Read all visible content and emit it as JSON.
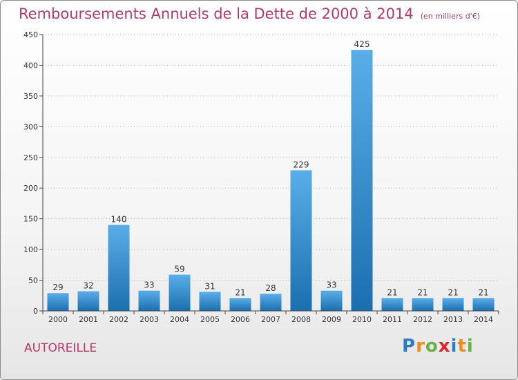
{
  "title": "Remboursements Annuels de la Dette de 2000 à 2014",
  "subtitle": "(en milliers d'€)",
  "commune": "AUTOREILLE",
  "logo": {
    "letters": [
      "P",
      "r",
      "o",
      "x",
      "i",
      "t",
      "i"
    ],
    "colors": [
      "#2b7dc4",
      "#f08a1c",
      "#6ab04c",
      "#d6262b",
      "#2b7dc4",
      "#f08a1c",
      "#6ab04c"
    ]
  },
  "colors": {
    "bar_light": "#5aaee8",
    "bar_dark": "#1a6fae",
    "title": "#b03a6a",
    "grid": "#b8b8b8"
  },
  "chart_data": {
    "type": "bar",
    "categories": [
      "2000",
      "2001",
      "2002",
      "2003",
      "2004",
      "2005",
      "2006",
      "2007",
      "2008",
      "2009",
      "2010",
      "2011",
      "2012",
      "2013",
      "2014"
    ],
    "values": [
      29,
      32,
      140,
      33,
      59,
      31,
      21,
      28,
      229,
      33,
      425,
      21,
      21,
      21,
      21
    ],
    "yticks": [
      0,
      50,
      100,
      150,
      200,
      250,
      300,
      350,
      400,
      450
    ],
    "ylim": [
      0,
      450
    ],
    "grid": "horizontal dotted",
    "legend": "none"
  }
}
